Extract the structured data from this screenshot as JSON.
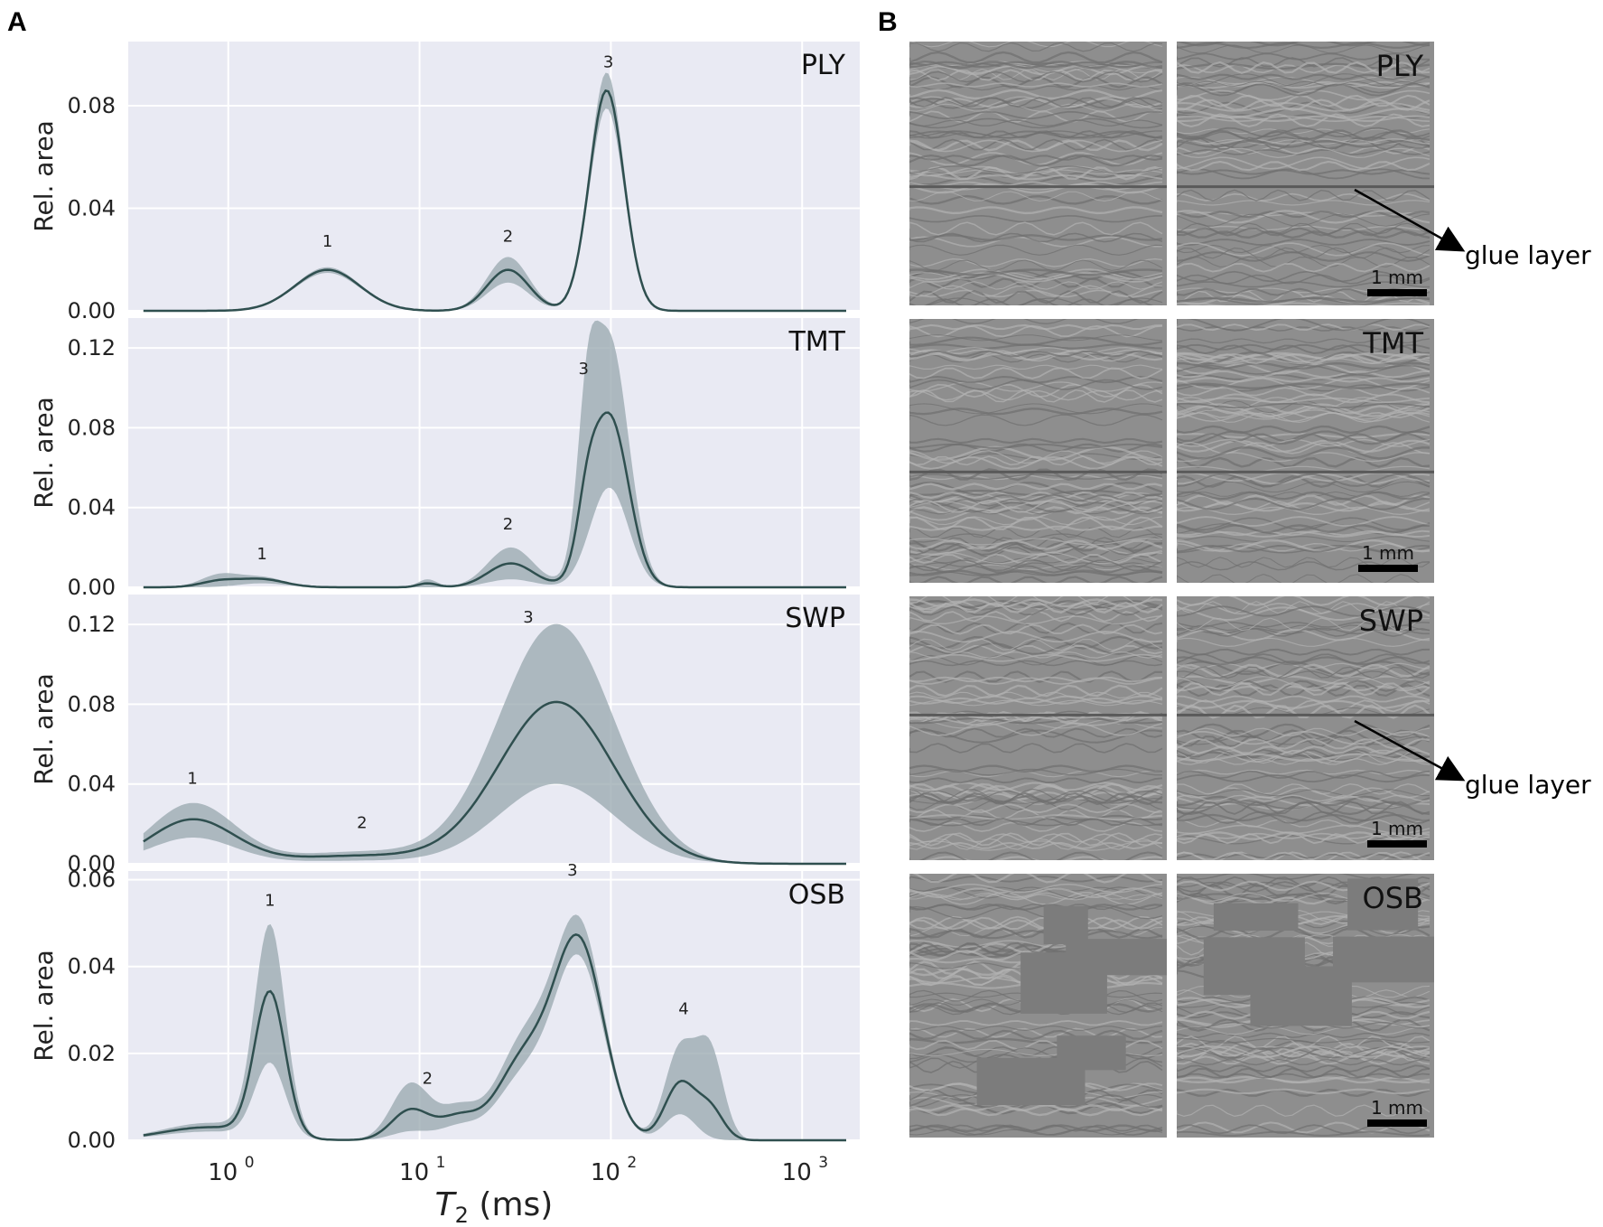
{
  "panel_letters": {
    "a": "A",
    "b": "B"
  },
  "chart_data": {
    "type": "area",
    "xlabel": "T",
    "xlabel_sub": "2",
    "xlabel_unit": " (ms)",
    "xscale": "log",
    "xlim": [
      0.3,
      2000
    ],
    "xticks": [
      {
        "value": 1,
        "base": "10",
        "exp": "0"
      },
      {
        "value": 10,
        "base": "10",
        "exp": "1"
      },
      {
        "value": 100,
        "base": "10",
        "exp": "2"
      },
      {
        "value": 1000,
        "base": "10",
        "exp": "3"
      }
    ],
    "grid": true,
    "panels": [
      {
        "name": "PLY",
        "ylabel": "Rel. area",
        "ylim": [
          0,
          0.105
        ],
        "yticks": [
          "0.00",
          "0.04",
          "0.08"
        ],
        "ytick_values": [
          0,
          0.04,
          0.08
        ],
        "peaks": [
          {
            "label": "1",
            "center": 3.3,
            "width": 0.17,
            "mean": 0.016,
            "upper": 0.017,
            "lower": 0.0148
          },
          {
            "label": "2",
            "center": 29,
            "width": 0.11,
            "mean": 0.016,
            "upper": 0.021,
            "lower": 0.011
          },
          {
            "label": "3",
            "center": 95,
            "width": 0.09,
            "mean": 0.086,
            "upper": 0.093,
            "lower": 0.079
          }
        ],
        "peak_labels": [
          {
            "text": "1",
            "x": 3.3,
            "y": 0.025
          },
          {
            "text": "2",
            "x": 29,
            "y": 0.027
          },
          {
            "text": "3",
            "x": 97,
            "y": 0.095
          }
        ]
      },
      {
        "name": "TMT",
        "ylabel": "Rel. area",
        "ylim": [
          0,
          0.135
        ],
        "yticks": [
          "0.00",
          "0.04",
          "0.08",
          "0.12"
        ],
        "ytick_values": [
          0,
          0.04,
          0.08,
          0.12
        ],
        "peaks": [
          {
            "label": "",
            "center": 0.9,
            "width": 0.1,
            "mean": 0.003,
            "upper": 0.006,
            "lower": 0.0
          },
          {
            "label": "1",
            "center": 1.5,
            "width": 0.12,
            "mean": 0.004,
            "upper": 0.005,
            "lower": 0.002
          },
          {
            "label": "",
            "center": 11,
            "width": 0.05,
            "mean": 0.002,
            "upper": 0.004,
            "lower": 0.0
          },
          {
            "label": "2",
            "center": 30,
            "width": 0.12,
            "mean": 0.012,
            "upper": 0.02,
            "lower": 0.004
          },
          {
            "label": "",
            "center": 75,
            "width": 0.05,
            "mean": 0.02,
            "upper": 0.055,
            "lower": 0.0
          },
          {
            "label": "3",
            "center": 98,
            "width": 0.1,
            "mean": 0.086,
            "upper": 0.125,
            "lower": 0.05
          }
        ],
        "peak_labels": [
          {
            "text": "1",
            "x": 1.5,
            "y": 0.014
          },
          {
            "text": "2",
            "x": 29,
            "y": 0.029
          },
          {
            "text": "3",
            "x": 72,
            "y": 0.107
          }
        ]
      },
      {
        "name": "SWP",
        "ylabel": "Rel. area",
        "ylim": [
          0,
          0.135
        ],
        "yticks": [
          "0.00",
          "0.04",
          "0.08",
          "0.12"
        ],
        "ytick_values": [
          0,
          0.04,
          0.08,
          0.12
        ],
        "peaks": [
          {
            "label": "1",
            "center": 0.65,
            "width": 0.22,
            "mean": 0.022,
            "upper": 0.03,
            "lower": 0.013
          },
          {
            "label": "2",
            "center": 5,
            "width": 0.4,
            "mean": 0.004,
            "upper": 0.006,
            "lower": 0.0015
          },
          {
            "label": "3",
            "center": 52,
            "width": 0.3,
            "mean": 0.081,
            "upper": 0.12,
            "lower": 0.04
          }
        ],
        "peak_labels": [
          {
            "text": "1",
            "x": 0.65,
            "y": 0.04
          },
          {
            "text": "2",
            "x": 5,
            "y": 0.018
          },
          {
            "text": "3",
            "x": 37,
            "y": 0.121
          }
        ]
      },
      {
        "name": "OSB",
        "ylabel": "Rel. area",
        "ylim": [
          0,
          0.062
        ],
        "yticks": [
          "0.00",
          "0.02",
          "0.04",
          "0.06"
        ],
        "ytick_values": [
          0,
          0.02,
          0.04,
          0.06
        ],
        "peaks": [
          {
            "label": "",
            "center": 0.8,
            "width": 0.25,
            "mean": 0.003,
            "upper": 0.004,
            "lower": 0.002
          },
          {
            "label": "1",
            "center": 1.65,
            "width": 0.08,
            "mean": 0.033,
            "upper": 0.048,
            "lower": 0.017
          },
          {
            "label": "2",
            "center": 9,
            "width": 0.1,
            "mean": 0.007,
            "upper": 0.013,
            "lower": 0.002
          },
          {
            "label": "",
            "center": 16,
            "width": 0.1,
            "mean": 0.005,
            "upper": 0.007,
            "lower": 0.003
          },
          {
            "label": "",
            "center": 35,
            "width": 0.14,
            "mean": 0.018,
            "upper": 0.022,
            "lower": 0.014
          },
          {
            "label": "3",
            "center": 68,
            "width": 0.13,
            "mean": 0.045,
            "upper": 0.049,
            "lower": 0.041
          },
          {
            "label": "4",
            "center": 230,
            "width": 0.08,
            "mean": 0.013,
            "upper": 0.021,
            "lower": 0.006
          },
          {
            "label": "",
            "center": 330,
            "width": 0.07,
            "mean": 0.007,
            "upper": 0.02,
            "lower": 0.0
          }
        ],
        "peak_labels": [
          {
            "text": "1",
            "x": 1.65,
            "y": 0.054
          },
          {
            "text": "2",
            "x": 11,
            "y": 0.013
          },
          {
            "text": "3",
            "x": 63,
            "y": 0.061
          },
          {
            "text": "4",
            "x": 240,
            "y": 0.029
          }
        ]
      }
    ]
  },
  "colors": {
    "plot_background": "#e9eaf3",
    "grid": "#ffffff",
    "line": "#2f4f4f",
    "band": "#97a7ad"
  },
  "micrographs": [
    {
      "tag": "PLY",
      "scale": "1 mm",
      "glue": "glue layer"
    },
    {
      "tag": "TMT",
      "scale": "1 mm",
      "glue": ""
    },
    {
      "tag": "SWP",
      "scale": "1 mm",
      "glue": "glue layer"
    },
    {
      "tag": "OSB",
      "scale": "1 mm",
      "glue": ""
    }
  ]
}
